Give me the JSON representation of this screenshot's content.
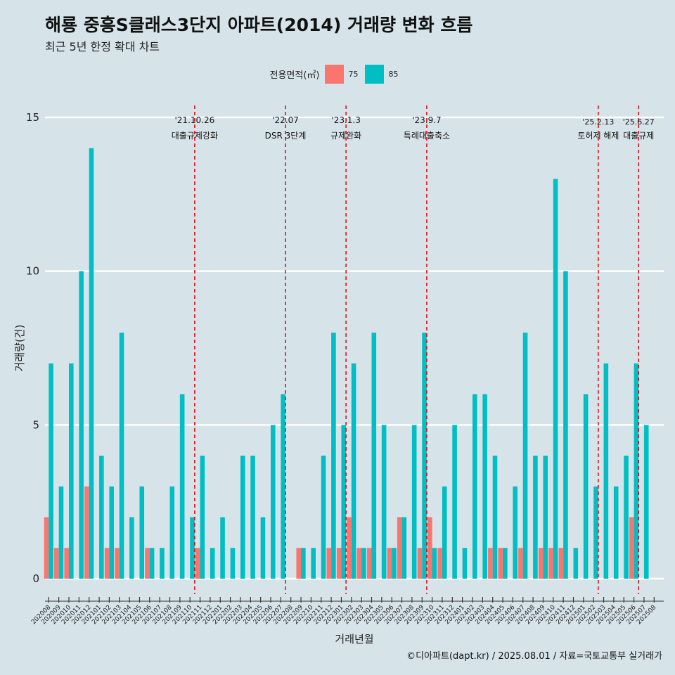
{
  "title": "해룡 중흥S클래스3단지 아파트(2014) 거래량 변화 흐름",
  "subtitle": "최근 5년 한정 확대 차트",
  "footer": "©디아파트(dapt.kr) / 2025.08.01 / 자료=국토교통부 실거래가",
  "legend": {
    "title": "전용면적(㎡)",
    "items": [
      {
        "label": "75",
        "color": "#f8766d"
      },
      {
        "label": "85",
        "color": "#00bfc4"
      }
    ]
  },
  "chart_data": {
    "type": "bar",
    "xlabel": "거래년월",
    "ylabel": "거래량(건)",
    "ylim": [
      0,
      15
    ],
    "yticks": [
      0,
      5,
      10,
      15
    ],
    "grid": true,
    "legend_position": "top",
    "categories": [
      "202008",
      "202009",
      "202010",
      "202011",
      "202012",
      "202101",
      "202102",
      "202103",
      "202104",
      "202105",
      "202106",
      "202107",
      "202108",
      "202109",
      "202110",
      "202111",
      "202112",
      "202201",
      "202202",
      "202203",
      "202204",
      "202205",
      "202206",
      "202207",
      "202208",
      "202209",
      "202210",
      "202211",
      "202212",
      "202301",
      "202302",
      "202303",
      "202304",
      "202305",
      "202306",
      "202307",
      "202308",
      "202309",
      "202310",
      "202311",
      "202312",
      "202401",
      "202402",
      "202403",
      "202404",
      "202405",
      "202406",
      "202407",
      "202408",
      "202409",
      "202410",
      "202411",
      "202412",
      "202501",
      "202502",
      "202503",
      "202504",
      "202505",
      "202506",
      "202507",
      "202508"
    ],
    "series": [
      {
        "name": "75",
        "color": "#f8766d",
        "values": [
          2,
          1,
          1,
          0,
          3,
          0,
          1,
          1,
          0,
          0,
          1,
          0,
          0,
          0,
          0,
          1,
          0,
          0,
          0,
          0,
          0,
          0,
          0,
          0,
          0,
          1,
          0,
          0,
          1,
          1,
          2,
          1,
          1,
          0,
          1,
          2,
          0,
          1,
          2,
          1,
          0,
          0,
          0,
          0,
          1,
          1,
          0,
          1,
          0,
          1,
          1,
          1,
          0,
          0,
          0,
          0,
          0,
          0,
          2,
          0,
          0
        ]
      },
      {
        "name": "85",
        "color": "#00bfc4",
        "values": [
          7,
          3,
          7,
          10,
          14,
          4,
          3,
          8,
          2,
          3,
          1,
          1,
          3,
          6,
          2,
          4,
          1,
          2,
          1,
          4,
          4,
          2,
          5,
          6,
          0,
          1,
          1,
          4,
          8,
          5,
          7,
          1,
          8,
          5,
          1,
          2,
          5,
          8,
          1,
          3,
          5,
          1,
          6,
          6,
          4,
          1,
          3,
          8,
          4,
          4,
          13,
          10,
          1,
          6,
          3,
          7,
          3,
          4,
          7,
          5,
          0
        ]
      }
    ],
    "annotations": [
      {
        "date": "'21.10.26",
        "label": "대출규제강화",
        "after": "202110"
      },
      {
        "date": "'22.07",
        "label": "DSR 3단계",
        "after": "202207"
      },
      {
        "date": "'23.1.3",
        "label": "규제완화",
        "after": "202301"
      },
      {
        "date": "'23.9.7",
        "label": "특례대출축소",
        "after": "202309"
      },
      {
        "date": "'25.2.13",
        "label": "토허제 해제",
        "after": "202502"
      },
      {
        "date": "'25.6.27",
        "label": "대출규제",
        "after": "202506"
      }
    ]
  }
}
